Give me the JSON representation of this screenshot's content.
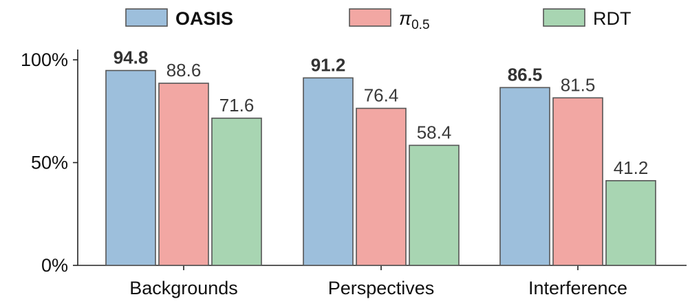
{
  "chart_data": {
    "type": "bar",
    "categories": [
      "Backgrounds",
      "Perspectives",
      "Interference"
    ],
    "series": [
      {
        "name": "OASIS",
        "color": "#9dbfdc",
        "bold": true,
        "values": [
          94.8,
          91.2,
          86.5
        ]
      },
      {
        "name": "π",
        "subscript": "0.5",
        "color": "#f2a7a3",
        "bold": false,
        "values": [
          88.6,
          76.4,
          81.5
        ]
      },
      {
        "name": "RDT",
        "color": "#a8d5b2",
        "bold": false,
        "values": [
          71.6,
          58.4,
          41.2
        ]
      }
    ],
    "ylim": [
      0,
      100
    ],
    "yticks": [
      {
        "value": 0,
        "label": "0%"
      },
      {
        "value": 50,
        "label": "50%"
      },
      {
        "value": 100,
        "label": "100%"
      }
    ],
    "value_labels": [
      [
        "94.8",
        "91.2",
        "86.5"
      ],
      [
        "88.6",
        "76.4",
        "81.5"
      ],
      [
        "71.6",
        "58.4",
        "41.2"
      ]
    ],
    "legend_position": "top",
    "grid": false,
    "edge_color": "#555555"
  }
}
